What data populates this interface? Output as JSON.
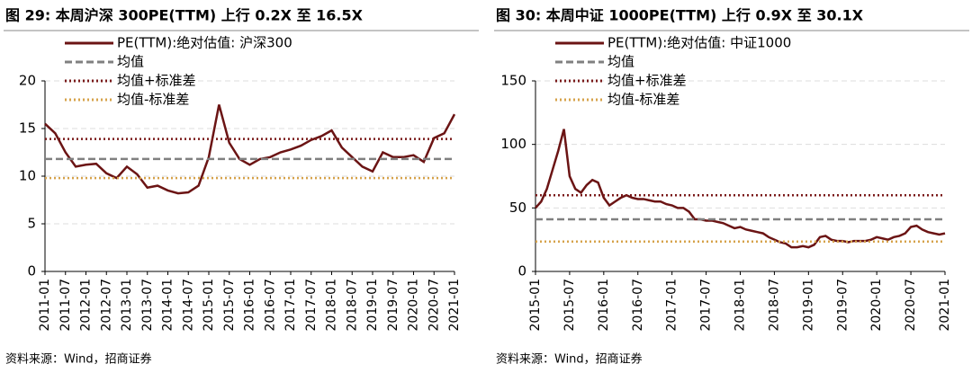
{
  "chart_data": [
    {
      "type": "line",
      "title": "图 29:  本周沪深 300PE(TTM)  上行 0.2X 至 16.5X",
      "source": "资料来源：Wind，招商证券",
      "categories": [
        "2011-01",
        null,
        "2011-07",
        null,
        "2012-01",
        null,
        "2012-07",
        null,
        "2013-01",
        null,
        "2013-07",
        null,
        "2014-01",
        null,
        "2014-07",
        null,
        "2015-01",
        null,
        "2015-07",
        null,
        "2016-01",
        null,
        "2016-07",
        null,
        "2017-01",
        null,
        "2017-07",
        null,
        "2018-01",
        null,
        "2018-07",
        null,
        "2019-01",
        null,
        "2019-07",
        null,
        "2020-01",
        null,
        "2020-07",
        null,
        "2021-01"
      ],
      "series": [
        {
          "name": "PE(TTM):绝对估值: 沪深300",
          "color": "#6b1414",
          "style": "solid",
          "values": [
            15.5,
            14.5,
            12.5,
            11,
            11.2,
            11.3,
            10.3,
            9.8,
            11,
            10.2,
            8.8,
            9,
            8.5,
            8.2,
            8.3,
            9,
            12,
            17.5,
            13.5,
            11.8,
            11.2,
            11.8,
            12,
            12.5,
            12.8,
            13.2,
            13.8,
            14.2,
            14.8,
            13,
            12,
            11,
            10.5,
            12.5,
            12,
            12,
            12.2,
            11.5,
            14,
            14.5,
            16.5
          ]
        },
        {
          "name": "均值",
          "color": "#808080",
          "style": "dashed",
          "value": 11.8
        },
        {
          "name": "均值+标准差",
          "color": "#7a1a1a",
          "style": "dotted",
          "value": 13.9
        },
        {
          "name": "均值-标准差",
          "color": "#d6a24a",
          "style": "dotted",
          "value": 9.8
        }
      ],
      "ylim": [
        0,
        20
      ],
      "yticks": [
        0,
        5,
        10,
        15,
        20
      ],
      "grid": true
    },
    {
      "type": "line",
      "title": "图 30:  本周中证 1000PE(TTM)  上行 0.9X 至 30.1X",
      "source": "资料来源：Wind，招商证券",
      "categories": [
        "2015-01",
        null,
        null,
        null,
        null,
        null,
        "2015-07",
        null,
        null,
        null,
        null,
        null,
        "2016-01",
        null,
        null,
        null,
        null,
        null,
        "2016-07",
        null,
        null,
        null,
        null,
        null,
        "2017-01",
        null,
        null,
        null,
        null,
        null,
        "2017-07",
        null,
        null,
        null,
        null,
        null,
        "2018-01",
        null,
        null,
        null,
        null,
        null,
        "2018-07",
        null,
        null,
        null,
        null,
        null,
        "2019-01",
        null,
        null,
        null,
        null,
        null,
        "2019-07",
        null,
        null,
        null,
        null,
        null,
        "2020-01",
        null,
        null,
        null,
        null,
        null,
        "2020-07",
        null,
        null,
        null,
        null,
        null,
        "2021-01"
      ],
      "series": [
        {
          "name": "PE(TTM):绝对估值: 中证1000",
          "color": "#6b1414",
          "style": "solid",
          "values": [
            50,
            55,
            65,
            80,
            95,
            112,
            75,
            65,
            62,
            68,
            72,
            70,
            58,
            52,
            55,
            58,
            60,
            58,
            57,
            57,
            56,
            55,
            55,
            53,
            52,
            50,
            50,
            47,
            41,
            41,
            40,
            40,
            39,
            38,
            36,
            34,
            35,
            33,
            32,
            31,
            30,
            27,
            25,
            23,
            22,
            19,
            19,
            20,
            19,
            21,
            27,
            28,
            25,
            24,
            24,
            23,
            24,
            24,
            24,
            25,
            27,
            26,
            25,
            27,
            28,
            30,
            35,
            36,
            33,
            31,
            30,
            29,
            30
          ]
        },
        {
          "name": "均值",
          "color": "#808080",
          "style": "dashed",
          "value": 41
        },
        {
          "name": "均值+标准差",
          "color": "#7a1a1a",
          "style": "dotted",
          "value": 60
        },
        {
          "name": "均值-标准差",
          "color": "#d6a24a",
          "style": "dotted",
          "value": 23.5
        }
      ],
      "ylim": [
        0,
        150
      ],
      "yticks": [
        0,
        50,
        100,
        150
      ],
      "grid": true
    }
  ]
}
